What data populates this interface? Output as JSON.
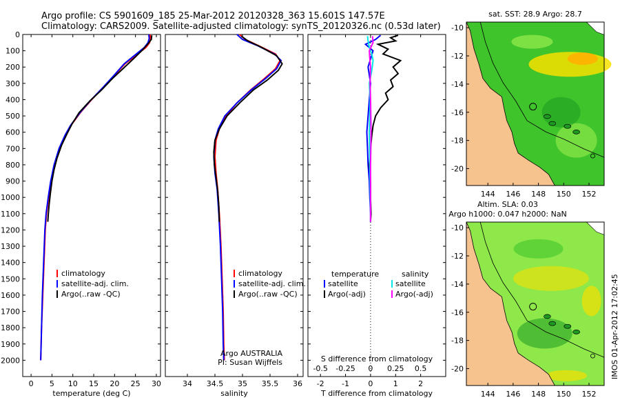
{
  "header": {
    "line1": "Argo profile: CS 5901609_185 25-Mar-2012 20120328_363 15.601S 147.57E",
    "line2": "Climatology: CARS2009. Satellite-adjusted climatology: synTS_20120326.nc (0.53d later)"
  },
  "footer": {
    "stamp": "IMOS 01-Apr-2012 17:02:45"
  },
  "colors": {
    "climatology": "#ff0000",
    "satellite": "#0000ff",
    "argo": "#000000",
    "sal_satellite": "#00e6e6",
    "sal_argo": "#ff00ff",
    "land": "#f6c38f",
    "ocean_light": "#8ee84a",
    "ocean_mid": "#3fc42c",
    "ocean_dark": "#1e9a22",
    "warm": "#f7e000",
    "hot": "#ffb000"
  },
  "chart_data": [
    {
      "id": "temperature",
      "type": "line",
      "xlabel": "temperature (deg C)",
      "ylabel": "",
      "xlim": [
        -2,
        31
      ],
      "ylim": [
        2100,
        0
      ],
      "xticks": [
        0,
        5,
        10,
        15,
        20,
        25,
        30
      ],
      "yticks": [
        0,
        100,
        200,
        300,
        400,
        500,
        600,
        700,
        800,
        900,
        1000,
        1100,
        1200,
        1300,
        1400,
        1500,
        1600,
        1700,
        1800,
        1900,
        2000
      ],
      "legend": [
        "climatology",
        "satellite-adj. clim.",
        "Argo(..raw -QC)"
      ],
      "series": [
        {
          "name": "climatology",
          "color": "#ff0000",
          "points": [
            [
              28.5,
              0
            ],
            [
              28.6,
              25
            ],
            [
              28.4,
              50
            ],
            [
              27.5,
              80
            ],
            [
              25.5,
              120
            ],
            [
              22.5,
              180
            ],
            [
              20.0,
              250
            ],
            [
              17.5,
              320
            ],
            [
              14.5,
              400
            ],
            [
              11.8,
              480
            ],
            [
              9.5,
              560
            ],
            [
              8.2,
              620
            ],
            [
              6.8,
              700
            ],
            [
              5.6,
              800
            ],
            [
              4.8,
              900
            ],
            [
              4.2,
              1000
            ],
            [
              3.7,
              1100
            ],
            [
              3.4,
              1200
            ],
            [
              3.1,
              1400
            ],
            [
              2.8,
              1600
            ],
            [
              2.5,
              1800
            ],
            [
              2.3,
              2000
            ]
          ]
        },
        {
          "name": "satellite-adj. clim.",
          "color": "#0000ff",
          "points": [
            [
              28.2,
              0
            ],
            [
              28.3,
              25
            ],
            [
              28.0,
              50
            ],
            [
              27.1,
              80
            ],
            [
              25.2,
              120
            ],
            [
              22.3,
              180
            ],
            [
              19.9,
              250
            ],
            [
              17.4,
              320
            ],
            [
              14.4,
              400
            ],
            [
              11.7,
              480
            ],
            [
              9.4,
              560
            ],
            [
              8.1,
              620
            ],
            [
              6.7,
              700
            ],
            [
              5.5,
              800
            ],
            [
              4.7,
              900
            ],
            [
              4.1,
              1000
            ],
            [
              3.6,
              1100
            ],
            [
              3.3,
              1200
            ],
            [
              3.0,
              1400
            ],
            [
              2.7,
              1600
            ],
            [
              2.5,
              1800
            ],
            [
              2.3,
              2000
            ]
          ]
        },
        {
          "name": "Argo(..raw -QC)",
          "color": "#000000",
          "points": [
            [
              28.9,
              5
            ],
            [
              28.8,
              30
            ],
            [
              27.9,
              60
            ],
            [
              26.5,
              100
            ],
            [
              24.5,
              150
            ],
            [
              22.0,
              210
            ],
            [
              19.5,
              270
            ],
            [
              16.9,
              340
            ],
            [
              14.0,
              410
            ],
            [
              11.5,
              480
            ],
            [
              9.8,
              550
            ],
            [
              8.6,
              610
            ],
            [
              7.3,
              680
            ],
            [
              6.2,
              760
            ],
            [
              5.5,
              830
            ],
            [
              5.0,
              900
            ],
            [
              4.6,
              980
            ],
            [
              4.3,
              1050
            ],
            [
              4.1,
              1110
            ],
            [
              4.0,
              1150
            ]
          ]
        }
      ]
    },
    {
      "id": "salinity",
      "type": "line",
      "xlabel": "salinity",
      "ylabel": "",
      "xlim": [
        33.6,
        36.1
      ],
      "ylim": [
        2100,
        0
      ],
      "xticks": [
        34,
        34.5,
        35,
        35.5,
        36
      ],
      "legend": [
        "climatology",
        "satellite-adj. clim.",
        "Argo(..raw -QC)"
      ],
      "annotation": [
        "Argo AUSTRALIA",
        "PI: Susan Wijffels"
      ],
      "series": [
        {
          "name": "climatology",
          "color": "#ff0000",
          "points": [
            [
              34.95,
              0
            ],
            [
              35.05,
              30
            ],
            [
              35.3,
              70
            ],
            [
              35.6,
              120
            ],
            [
              35.68,
              160
            ],
            [
              35.6,
              210
            ],
            [
              35.4,
              270
            ],
            [
              35.15,
              340
            ],
            [
              34.9,
              420
            ],
            [
              34.7,
              500
            ],
            [
              34.58,
              580
            ],
            [
              34.52,
              650
            ],
            [
              34.5,
              750
            ],
            [
              34.52,
              850
            ],
            [
              34.55,
              950
            ],
            [
              34.58,
              1100
            ],
            [
              34.61,
              1300
            ],
            [
              34.63,
              1500
            ],
            [
              34.65,
              1700
            ],
            [
              34.66,
              1900
            ],
            [
              34.67,
              2000
            ]
          ]
        },
        {
          "name": "satellite-adj. clim.",
          "color": "#0000ff",
          "points": [
            [
              34.9,
              0
            ],
            [
              35.0,
              30
            ],
            [
              35.28,
              70
            ],
            [
              35.58,
              120
            ],
            [
              35.7,
              160
            ],
            [
              35.62,
              210
            ],
            [
              35.42,
              270
            ],
            [
              35.16,
              340
            ],
            [
              34.9,
              420
            ],
            [
              34.68,
              500
            ],
            [
              34.56,
              580
            ],
            [
              34.5,
              650
            ],
            [
              34.48,
              750
            ],
            [
              34.5,
              850
            ],
            [
              34.54,
              950
            ],
            [
              34.57,
              1100
            ],
            [
              34.6,
              1300
            ],
            [
              34.62,
              1500
            ],
            [
              34.64,
              1700
            ],
            [
              34.65,
              1900
            ],
            [
              34.66,
              2000
            ]
          ]
        },
        {
          "name": "Argo(..raw -QC)",
          "color": "#000000",
          "points": [
            [
              34.98,
              10
            ],
            [
              35.1,
              40
            ],
            [
              35.35,
              80
            ],
            [
              35.62,
              130
            ],
            [
              35.72,
              180
            ],
            [
              35.65,
              220
            ],
            [
              35.45,
              280
            ],
            [
              35.2,
              340
            ],
            [
              34.95,
              420
            ],
            [
              34.72,
              500
            ],
            [
              34.58,
              580
            ],
            [
              34.5,
              650
            ],
            [
              34.48,
              720
            ],
            [
              34.49,
              800
            ],
            [
              34.52,
              880
            ],
            [
              34.55,
              960
            ],
            [
              34.57,
              1050
            ],
            [
              34.58,
              1150
            ]
          ]
        }
      ]
    },
    {
      "id": "difference",
      "type": "line",
      "xlabel": "T difference from climatology",
      "xlabel_top": "S difference from climatology",
      "ylabel": "",
      "xlim": [
        -2.5,
        3
      ],
      "ylim": [
        2100,
        0
      ],
      "xticks": [
        -2,
        -1,
        0,
        1,
        2
      ],
      "sticks": [
        -0.5,
        -0.25,
        0,
        0.25,
        0.5
      ],
      "sticks_label_at": [
        -2,
        -1,
        0,
        1,
        2
      ],
      "legend": {
        "temperature": "temperature",
        "salinity": "salinity",
        "t_sat": "satellite",
        "t_argo": "Argo(-adj)",
        "s_sat": "satellite",
        "s_argo": "Argo(-adj)"
      },
      "series": [
        {
          "name": "T satellite",
          "color": "#0000ff",
          "points": [
            [
              0.4,
              5
            ],
            [
              0.2,
              30
            ],
            [
              -0.2,
              60
            ],
            [
              0.1,
              100
            ],
            [
              0.0,
              150
            ],
            [
              -0.1,
              200
            ],
            [
              0.0,
              300
            ],
            [
              -0.05,
              400
            ],
            [
              -0.1,
              500
            ],
            [
              -0.15,
              600
            ],
            [
              -0.12,
              700
            ],
            [
              -0.1,
              800
            ],
            [
              -0.05,
              900
            ],
            [
              -0.03,
              1000
            ],
            [
              0.0,
              1100
            ],
            [
              0.0,
              1150
            ]
          ]
        },
        {
          "name": "T Argo",
          "color": "#000000",
          "points": [
            [
              1.1,
              5
            ],
            [
              0.8,
              20
            ],
            [
              1.0,
              40
            ],
            [
              0.3,
              60
            ],
            [
              0.7,
              90
            ],
            [
              0.5,
              120
            ],
            [
              1.2,
              160
            ],
            [
              0.9,
              200
            ],
            [
              1.1,
              240
            ],
            [
              0.8,
              280
            ],
            [
              0.9,
              320
            ],
            [
              0.6,
              360
            ],
            [
              0.7,
              400
            ],
            [
              0.4,
              450
            ],
            [
              0.2,
              500
            ],
            [
              0.1,
              560
            ],
            [
              0.05,
              620
            ],
            [
              0.0,
              700
            ],
            [
              -0.05,
              800
            ],
            [
              0.0,
              900
            ],
            [
              0.0,
              1000
            ],
            [
              0.02,
              1100
            ],
            [
              0.0,
              1150
            ]
          ]
        },
        {
          "name": "S satellite",
          "color": "#00e6e6",
          "points": [
            [
              -0.12,
              10
            ],
            [
              -0.1,
              40
            ],
            [
              -0.05,
              80
            ],
            [
              0.05,
              120
            ],
            [
              0.1,
              160
            ],
            [
              0.05,
              220
            ],
            [
              -0.05,
              300
            ],
            [
              -0.02,
              400
            ],
            [
              -0.03,
              500
            ],
            [
              -0.05,
              600
            ],
            [
              -0.04,
              700
            ],
            [
              -0.03,
              800
            ],
            [
              -0.02,
              900
            ],
            [
              -0.01,
              1000
            ],
            [
              0.0,
              1100
            ],
            [
              0.0,
              1150
            ]
          ]
        },
        {
          "name": "S Argo",
          "color": "#ff00ff",
          "points": [
            [
              0.08,
              10
            ],
            [
              0.1,
              50
            ],
            [
              -0.05,
              100
            ],
            [
              -0.03,
              150
            ],
            [
              0.0,
              200
            ],
            [
              -0.02,
              300
            ],
            [
              0.0,
              400
            ],
            [
              0.01,
              500
            ],
            [
              0.02,
              600
            ],
            [
              0.01,
              700
            ],
            [
              0.0,
              800
            ],
            [
              0.0,
              900
            ],
            [
              0.0,
              1000
            ],
            [
              0.0,
              1100
            ],
            [
              0.0,
              1150
            ]
          ]
        }
      ]
    }
  ],
  "maps": [
    {
      "id": "sst-map",
      "title": "sat. SST: 28.9  Argo: 28.7",
      "xticks": [
        144,
        146,
        148,
        150,
        152
      ],
      "yticks": [
        -10,
        -12,
        -14,
        -16,
        -18,
        -20
      ],
      "xlim": [
        142.3,
        153.2
      ],
      "ylim": [
        -21.2,
        -9.6
      ],
      "argo_pos": [
        147.57,
        -15.601
      ]
    },
    {
      "id": "sla-map",
      "title1": "Altim. SLA: 0.03",
      "title2": "Argo h1000: 0.047  h2000: NaN",
      "xticks": [
        144,
        146,
        148,
        150,
        152
      ],
      "yticks": [
        -10,
        -12,
        -14,
        -16,
        -18,
        -20
      ],
      "xlim": [
        142.3,
        153.2
      ],
      "ylim": [
        -21.2,
        -9.6
      ],
      "argo_pos": [
        147.57,
        -15.601
      ]
    }
  ]
}
